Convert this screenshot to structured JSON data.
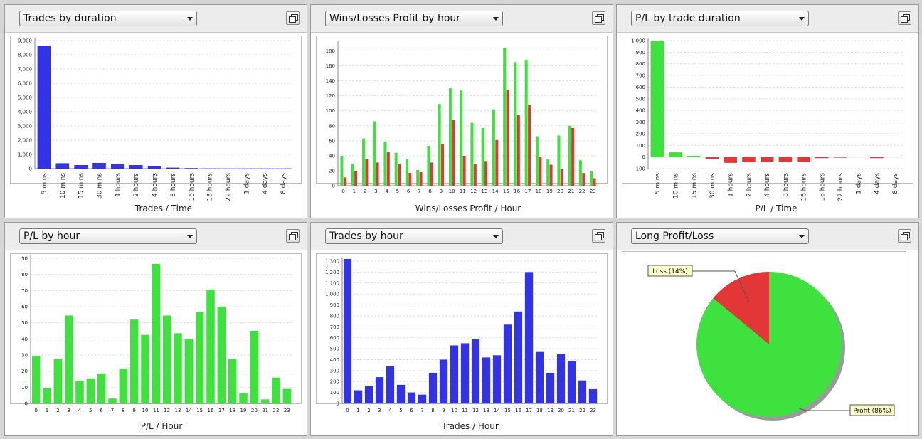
{
  "colors": {
    "blue": "#3333e6",
    "green": "#3fe13f",
    "red": "#e33636",
    "grid": "#e2e2e2"
  },
  "icons": {
    "dropdown": "chevron-down-icon",
    "popout": "restore-window-icon"
  },
  "panels": [
    {
      "selector_label": "Trades by duration"
    },
    {
      "selector_label": "Wins/Losses Profit by hour"
    },
    {
      "selector_label": "P/L by trade duration"
    },
    {
      "selector_label": "P/L by hour"
    },
    {
      "selector_label": "Trades by hour"
    },
    {
      "selector_label": "Long Profit/Loss"
    }
  ],
  "chart_data": [
    {
      "type": "bar",
      "xlabel": "Trades / Time",
      "categories": [
        "5 mins",
        "10 mins",
        "15 mins",
        "30 mins",
        "1 hours",
        "2 hours",
        "4 hours",
        "8 hours",
        "16 hours",
        "18 hours",
        "22 hours",
        "1 days",
        "4 days",
        "8 days"
      ],
      "values": [
        8650,
        380,
        250,
        400,
        300,
        250,
        160,
        70,
        40,
        10,
        5,
        5,
        5,
        5
      ],
      "ylim": [
        0,
        9000
      ],
      "yticks": [
        "0",
        "1,000",
        "2,000",
        "3,000",
        "4,000",
        "5,000",
        "6,000",
        "7,000",
        "8,000",
        "9,000"
      ],
      "grid": true
    },
    {
      "type": "bar",
      "xlabel": "Wins/Losses Profit / Hour",
      "categories": [
        "0",
        "1",
        "2",
        "3",
        "4",
        "5",
        "6",
        "7",
        "8",
        "9",
        "10",
        "11",
        "12",
        "13",
        "14",
        "15",
        "16",
        "17",
        "18",
        "19",
        "20",
        "21",
        "22",
        "23"
      ],
      "series": [
        {
          "values": [
            40,
            29,
            63,
            86,
            59,
            44,
            36,
            21,
            53,
            109,
            130,
            127,
            84,
            77,
            102,
            184,
            165,
            168,
            66,
            35,
            67,
            80,
            34,
            19
          ]
        },
        {
          "values": [
            11,
            20,
            36,
            31,
            45,
            29,
            17,
            18,
            31,
            56,
            88,
            40,
            29,
            33,
            61,
            128,
            94,
            108,
            39,
            28,
            22,
            77,
            17,
            10
          ]
        }
      ],
      "ylim": [
        0,
        190
      ],
      "yticks": [
        "0",
        "20",
        "40",
        "60",
        "80",
        "100",
        "120",
        "140",
        "160",
        "180"
      ],
      "grid": true
    },
    {
      "type": "bar",
      "xlabel": "P/L / Time",
      "categories": [
        "5 mins",
        "10 mins",
        "15 mins",
        "30 mins",
        "1 hours",
        "2 hours",
        "4 hours",
        "8 hours",
        "16 hours",
        "18 hours",
        "22 hours",
        "1 days",
        "4 days",
        "8 days"
      ],
      "values": [
        995,
        40,
        10,
        -15,
        -50,
        -45,
        -40,
        -40,
        -40,
        -10,
        -5,
        0,
        -10,
        0
      ],
      "ylim": [
        -100,
        1000
      ],
      "yticks": [
        "-100",
        "0",
        "100",
        "200",
        "300",
        "400",
        "500",
        "600",
        "700",
        "800",
        "900",
        "1,000"
      ],
      "grid": true
    },
    {
      "type": "bar",
      "xlabel": "P/L / Hour",
      "categories": [
        "0",
        "1",
        "2",
        "3",
        "4",
        "5",
        "6",
        "7",
        "8",
        "9",
        "10",
        "11",
        "12",
        "13",
        "14",
        "15",
        "16",
        "17",
        "18",
        "19",
        "20",
        "21",
        "22",
        "23"
      ],
      "values": [
        29.5,
        9.5,
        27.5,
        54.5,
        14,
        15.5,
        18.5,
        3,
        21.5,
        52,
        42.5,
        86.5,
        54.5,
        43.5,
        40,
        56.5,
        70.5,
        60,
        27.5,
        6.5,
        45,
        2.5,
        16,
        9
      ],
      "ylim": [
        0,
        90
      ],
      "yticks": [
        "0",
        "10",
        "20",
        "30",
        "40",
        "50",
        "60",
        "70",
        "80",
        "90"
      ],
      "grid": true
    },
    {
      "type": "bar",
      "xlabel": "Trades / Hour",
      "categories": [
        "0",
        "1",
        "2",
        "3",
        "4",
        "5",
        "6",
        "7",
        "8",
        "9",
        "10",
        "11",
        "12",
        "13",
        "14",
        "15",
        "16",
        "17",
        "18",
        "19",
        "20",
        "21",
        "22",
        "23"
      ],
      "values": [
        1320,
        120,
        160,
        240,
        340,
        170,
        100,
        80,
        280,
        400,
        530,
        550,
        590,
        420,
        440,
        720,
        840,
        1200,
        470,
        280,
        450,
        390,
        210,
        130
      ],
      "ylim": [
        0,
        1300
      ],
      "yticks": [
        "0",
        "100",
        "200",
        "300",
        "400",
        "500",
        "600",
        "700",
        "800",
        "900",
        "1,000",
        "1,100",
        "1,200",
        "1,300"
      ],
      "grid": true
    },
    {
      "type": "pie",
      "slices": [
        {
          "label": "Profit (86%)",
          "value": 86
        },
        {
          "label": "Loss (14%)",
          "value": 14
        }
      ]
    }
  ]
}
